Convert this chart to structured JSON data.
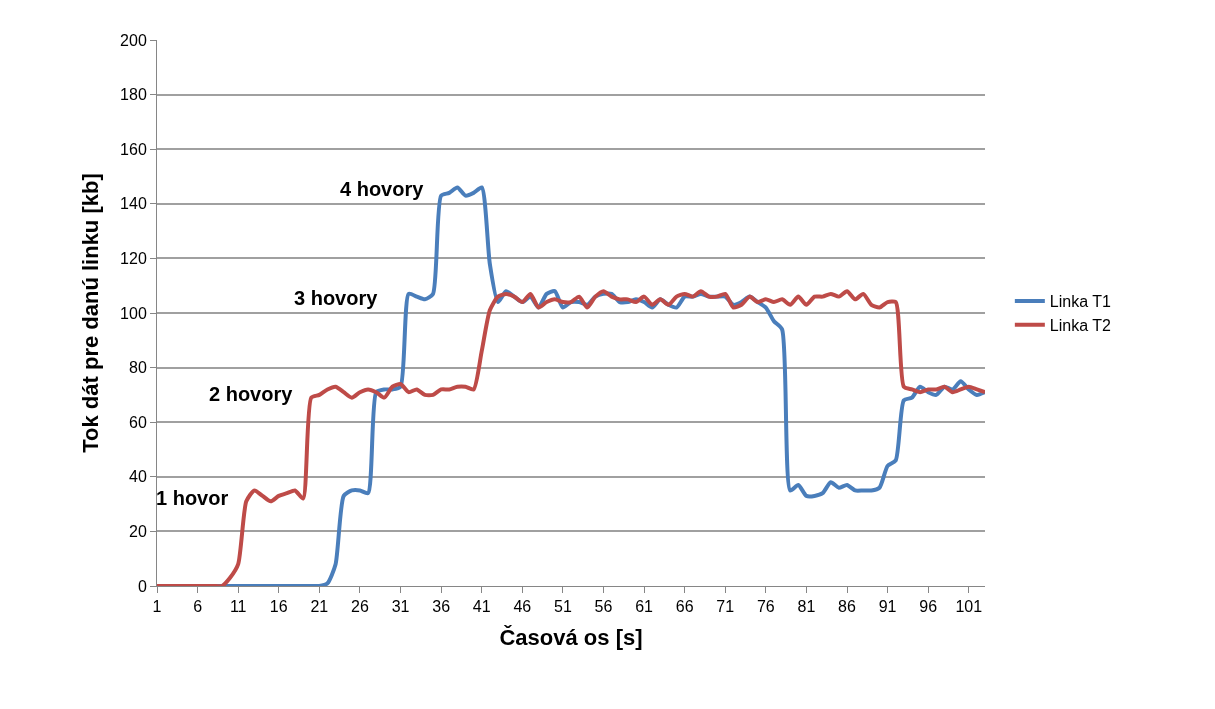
{
  "chart_data": {
    "type": "line",
    "xlabel": "Časová os [s]",
    "ylabel": "Tok dát pre danú linku [kb]",
    "x": [
      1,
      2,
      3,
      4,
      5,
      6,
      7,
      8,
      9,
      10,
      11,
      12,
      13,
      14,
      15,
      16,
      17,
      18,
      19,
      20,
      21,
      22,
      23,
      24,
      25,
      26,
      27,
      28,
      29,
      30,
      31,
      32,
      33,
      34,
      35,
      36,
      37,
      38,
      39,
      40,
      41,
      42,
      43,
      44,
      45,
      46,
      47,
      48,
      49,
      50,
      51,
      52,
      53,
      54,
      55,
      56,
      57,
      58,
      59,
      60,
      61,
      62,
      63,
      64,
      65,
      66,
      67,
      68,
      69,
      70,
      71,
      72,
      73,
      74,
      75,
      76,
      77,
      78,
      79,
      80,
      81,
      82,
      83,
      84,
      85,
      86,
      87,
      88,
      89,
      90,
      91,
      92,
      93,
      94,
      95,
      96,
      97,
      98,
      99,
      100,
      101,
      102,
      103
    ],
    "series": [
      {
        "name": "Linka T1",
        "color": "#4a7ebb",
        "values": [
          null,
          null,
          null,
          null,
          null,
          null,
          null,
          0,
          0,
          0,
          0,
          0,
          0,
          0,
          0,
          0,
          0,
          0,
          0,
          0,
          0,
          1,
          8,
          33,
          35,
          35,
          34,
          71,
          72,
          72,
          73,
          107,
          106,
          105,
          107,
          143,
          144,
          146,
          143,
          144,
          146,
          118,
          104,
          108,
          106,
          104,
          106,
          102,
          107,
          108,
          102,
          104,
          104,
          103,
          106,
          107,
          107,
          104,
          104,
          105,
          104,
          102,
          105,
          103,
          102,
          106,
          106,
          107,
          106,
          106,
          106,
          103,
          104,
          106,
          104,
          102,
          97,
          94,
          35,
          37,
          33,
          33,
          34,
          38,
          36,
          37,
          35,
          35,
          35,
          36,
          44,
          46,
          68,
          69,
          73,
          71,
          70,
          73,
          72,
          75,
          72,
          70,
          71
        ]
      },
      {
        "name": "Linka T2",
        "color": "#be4b48",
        "values": [
          0,
          0,
          0,
          0,
          0,
          0,
          0,
          0,
          0,
          3,
          8,
          31,
          35,
          33,
          31,
          33,
          34,
          35,
          32,
          69,
          70,
          72,
          73,
          71,
          69,
          71,
          72,
          71,
          69,
          73,
          74,
          71,
          72,
          70,
          70,
          72,
          72,
          73,
          73,
          72,
          86,
          101,
          106,
          107,
          106,
          104,
          107,
          102,
          104,
          105,
          104,
          104,
          106,
          102,
          106,
          108,
          106,
          105,
          105,
          104,
          106,
          103,
          105,
          103,
          106,
          107,
          106,
          108,
          106,
          106,
          107,
          102,
          103,
          106,
          104,
          105,
          104,
          105,
          103,
          106,
          103,
          106,
          106,
          107,
          106,
          108,
          105,
          107,
          103,
          102,
          104,
          104,
          73,
          72,
          71,
          72,
          72,
          73,
          71,
          72,
          73,
          72,
          71
        ]
      }
    ],
    "annotations": [
      "1 hovor",
      "2 hovory",
      "3 hovory",
      "4 hovory"
    ],
    "xlim": [
      1,
      103
    ],
    "xticks": [
      1,
      6,
      11,
      16,
      21,
      26,
      31,
      36,
      41,
      46,
      51,
      56,
      61,
      66,
      71,
      76,
      81,
      86,
      91,
      96,
      101
    ],
    "ylim": [
      0,
      200
    ],
    "yticks": [
      0,
      20,
      40,
      60,
      80,
      100,
      120,
      140,
      160,
      180,
      200
    ],
    "grid": "y",
    "legend": "right",
    "marker": "none",
    "line_style": "solid"
  }
}
